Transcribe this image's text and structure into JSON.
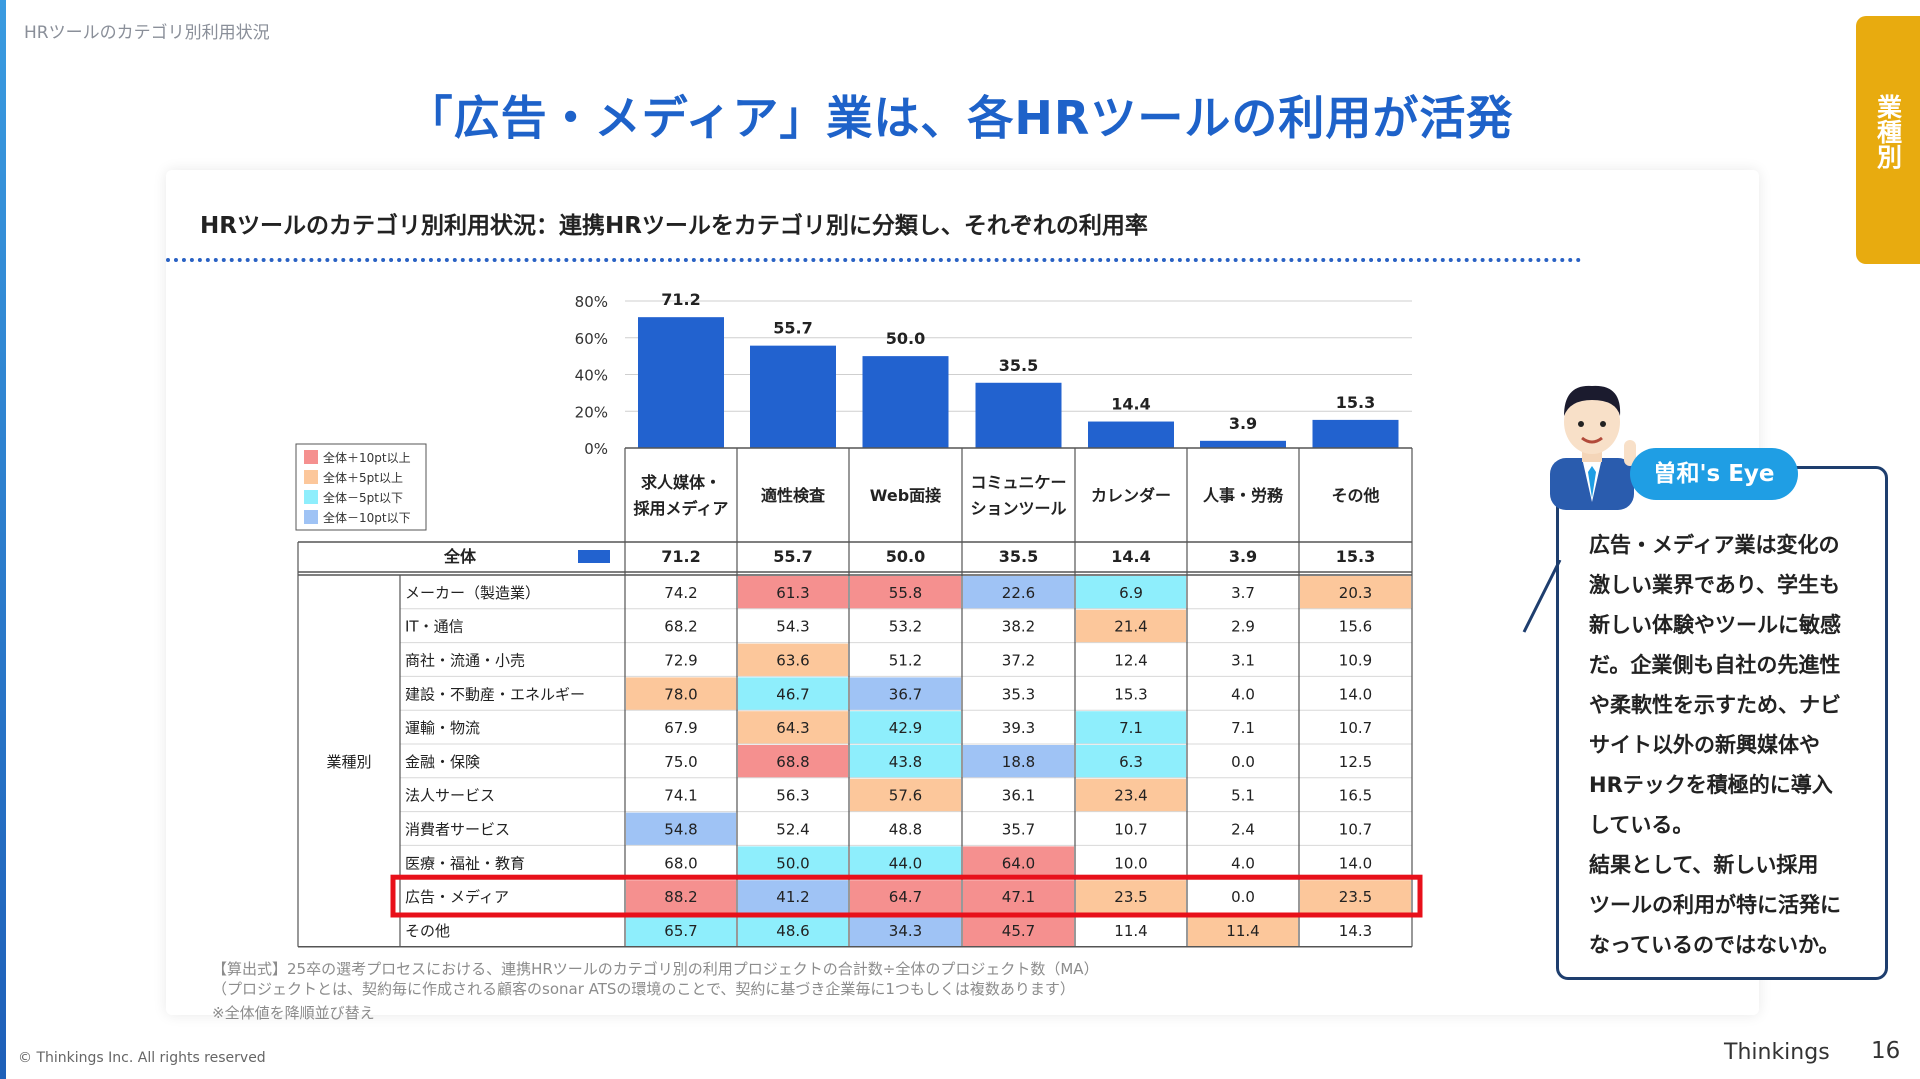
{
  "header": {
    "label": "HRツールのカテゴリ別利用状況"
  },
  "side_tab": {
    "label": "業種別"
  },
  "title": "「広告・メディア」業は、各HRツールの利用が活発",
  "subtitle": "HRツールのカテゴリ別利用状況：連携HRツールをカテゴリ別に分類し、それぞれの利用率",
  "legend": {
    "items": [
      {
        "label": "全体＋10pt以上",
        "color": "#f5908f"
      },
      {
        "label": "全体＋5pt以上",
        "color": "#fcc79b"
      },
      {
        "label": "全体－5pt以下",
        "color": "#8eeefc"
      },
      {
        "label": "全体－10pt以下",
        "color": "#9fc3f5"
      }
    ]
  },
  "chart_data": {
    "type": "bar",
    "categories": [
      "求人媒体・採用メディア",
      "適性検査",
      "Web面接",
      "コミュニケーションツール",
      "カレンダー",
      "人事・労務",
      "その他"
    ],
    "category_lines": [
      [
        "求人媒体・",
        "採用メディア"
      ],
      [
        "適性検査"
      ],
      [
        "Web面接"
      ],
      [
        "コミュニケー",
        "ションツール"
      ],
      [
        "カレンダー"
      ],
      [
        "人事・労務"
      ],
      [
        "その他"
      ]
    ],
    "values": [
      71.2,
      55.7,
      50.0,
      35.5,
      14.4,
      3.9,
      15.3
    ],
    "value_labels": [
      "71.2",
      "55.7",
      "50.0",
      "35.5",
      "14.4",
      "3.9",
      "15.3"
    ],
    "yticks": [
      "0%",
      "20%",
      "40%",
      "60%",
      "80%"
    ],
    "ylim": [
      0,
      80
    ],
    "bar_color": "#2262cf",
    "grid": true
  },
  "table": {
    "overall_label": "全体",
    "overall_values": [
      "71.2",
      "55.7",
      "50.0",
      "35.5",
      "14.4",
      "3.9",
      "15.3"
    ],
    "group_label": "業種別",
    "highlight_row": "広告・メディア",
    "highlight_color": "#e8101a",
    "rows": [
      {
        "label": "メーカー（製造業）",
        "values": [
          "74.2",
          "61.3",
          "55.8",
          "22.6",
          "6.9",
          "3.7",
          "20.3"
        ],
        "levels": [
          0,
          2,
          2,
          -2,
          -1,
          0,
          1
        ]
      },
      {
        "label": "IT・通信",
        "values": [
          "68.2",
          "54.3",
          "53.2",
          "38.2",
          "21.4",
          "2.9",
          "15.6"
        ],
        "levels": [
          0,
          0,
          0,
          0,
          1,
          0,
          0
        ]
      },
      {
        "label": "商社・流通・小売",
        "values": [
          "72.9",
          "63.6",
          "51.2",
          "37.2",
          "12.4",
          "3.1",
          "10.9"
        ],
        "levels": [
          0,
          1,
          0,
          0,
          0,
          0,
          0
        ]
      },
      {
        "label": "建設・不動産・エネルギー",
        "values": [
          "78.0",
          "46.7",
          "36.7",
          "35.3",
          "15.3",
          "4.0",
          "14.0"
        ],
        "levels": [
          1,
          -1,
          -2,
          0,
          0,
          0,
          0
        ]
      },
      {
        "label": "運輸・物流",
        "values": [
          "67.9",
          "64.3",
          "42.9",
          "39.3",
          "7.1",
          "7.1",
          "10.7"
        ],
        "levels": [
          0,
          1,
          -1,
          0,
          -1,
          0,
          0
        ]
      },
      {
        "label": "金融・保険",
        "values": [
          "75.0",
          "68.8",
          "43.8",
          "18.8",
          "6.3",
          "0.0",
          "12.5"
        ],
        "levels": [
          0,
          2,
          -1,
          -2,
          -1,
          0,
          0
        ]
      },
      {
        "label": "法人サービス",
        "values": [
          "74.1",
          "56.3",
          "57.6",
          "36.1",
          "23.4",
          "5.1",
          "16.5"
        ],
        "levels": [
          0,
          0,
          1,
          0,
          1,
          0,
          0
        ]
      },
      {
        "label": "消費者サービス",
        "values": [
          "54.8",
          "52.4",
          "48.8",
          "35.7",
          "10.7",
          "2.4",
          "10.7"
        ],
        "levels": [
          -2,
          0,
          0,
          0,
          0,
          0,
          0
        ]
      },
      {
        "label": "医療・福祉・教育",
        "values": [
          "68.0",
          "50.0",
          "44.0",
          "64.0",
          "10.0",
          "4.0",
          "14.0"
        ],
        "levels": [
          0,
          -1,
          -1,
          2,
          0,
          0,
          0
        ]
      },
      {
        "label": "広告・メディア",
        "values": [
          "88.2",
          "41.2",
          "64.7",
          "47.1",
          "23.5",
          "0.0",
          "23.5"
        ],
        "levels": [
          2,
          -2,
          2,
          2,
          1,
          0,
          1
        ]
      },
      {
        "label": "その他",
        "values": [
          "65.7",
          "48.6",
          "34.3",
          "45.7",
          "11.4",
          "11.4",
          "14.3"
        ],
        "levels": [
          -1,
          -1,
          -2,
          2,
          0,
          1,
          0
        ]
      }
    ]
  },
  "footnotes": [
    "【算出式】25卒の選考プロセスにおける、連携HRツールのカテゴリ別の利用プロジェクトの合計数÷全体のプロジェクト数（MA）",
    "（プロジェクトとは、契約毎に作成される顧客のsonar ATSの環境のことで、契約に基づき企業毎に1つもしくは複数あります）",
    "※全体値を降順並び替え"
  ],
  "comment": {
    "badge": "曽和's Eye",
    "lines": [
      "広告・メディア業は変化の",
      "激しい業界であり、学生も",
      "新しい体験やツールに敏感",
      "だ。企業側も自社の先進性",
      "や柔軟性を示すため、ナビ",
      "サイト以外の新興媒体や",
      "HRテックを積極的に導入",
      "している。",
      "結果として、新しい採用",
      "ツールの利用が特に活発に",
      "なっているのではないか。"
    ]
  },
  "footer": {
    "copyright": "© Thinkings Inc. All rights reserved",
    "brand": "Thinkings",
    "page": "16"
  }
}
